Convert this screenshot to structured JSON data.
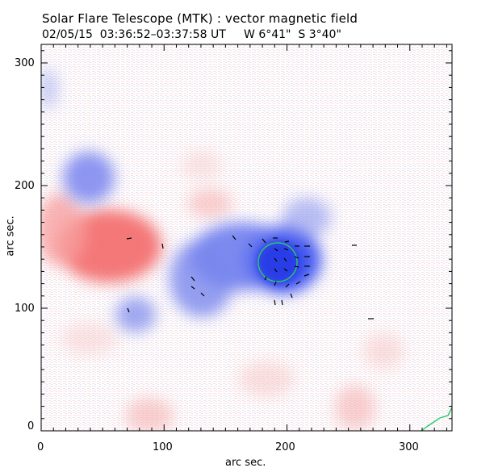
{
  "title": "Solar Flare Telescope (MTK) : vector magnetic field",
  "subtitle": "02/05/15  03:36:52–03:37:58 UT     W 6°41\"  S 3°40\"",
  "xlabel": "arc sec.",
  "ylabel": "arc sec.",
  "x_ticks": [
    "0",
    "100",
    "200",
    "300"
  ],
  "y_ticks": [
    "0",
    "100",
    "200",
    "300"
  ],
  "colors": {
    "positive_polarity": "#f28b8b",
    "negative_polarity": "#5a6ff0",
    "contour": "#27c96a",
    "vectors": "#000000"
  }
}
